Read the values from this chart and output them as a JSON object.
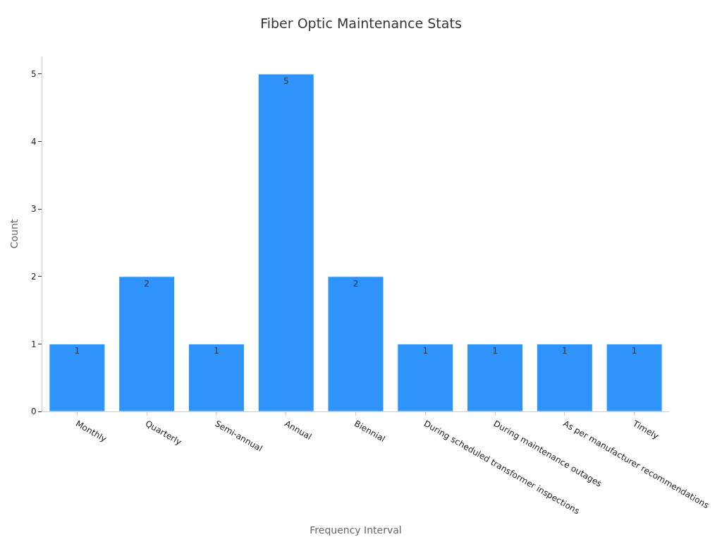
{
  "chart_data": {
    "type": "bar",
    "title": "Fiber Optic Maintenance Stats",
    "xlabel": "Frequency Interval",
    "ylabel": "Count",
    "categories": [
      "Monthly",
      "Quarterly",
      "Semi-annual",
      "Annual",
      "Biennial",
      "During scheduled transformer inspections",
      "During maintenance outages",
      "As per manufacturer recommendations",
      "Timely"
    ],
    "values": [
      1,
      2,
      1,
      5,
      2,
      1,
      1,
      1,
      1
    ],
    "color": "#2e93fa",
    "ylim": [
      0,
      5.26
    ],
    "yticks": [
      0,
      1,
      2,
      3,
      4,
      5
    ],
    "data_labels": true
  }
}
